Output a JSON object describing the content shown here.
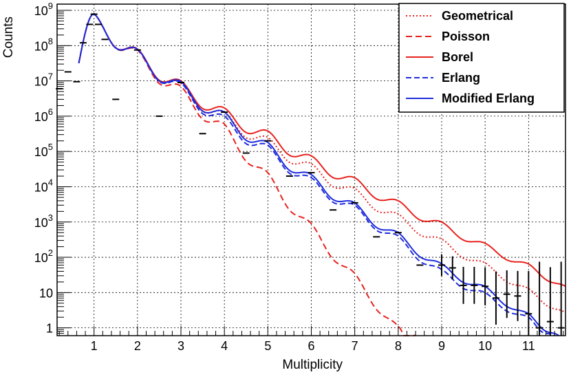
{
  "chart_data": {
    "type": "line",
    "xlabel": "Multiplicity",
    "ylabel": "Counts",
    "xlim": [
      0.15,
      11.85
    ],
    "ylim": [
      0.6,
      1500000000
    ],
    "yscale": "log",
    "grid": true,
    "legend_position": "top-right",
    "x_ticks": [
      "1",
      "2",
      "3",
      "4",
      "5",
      "6",
      "7",
      "8",
      "9",
      "10",
      "11"
    ],
    "y_ticks": [
      {
        "value": 1,
        "base": "1",
        "exp": ""
      },
      {
        "value": 10,
        "base": "10",
        "exp": ""
      },
      {
        "value": 100,
        "base": "10",
        "exp": "2"
      },
      {
        "value": 1000,
        "base": "10",
        "exp": "3"
      },
      {
        "value": 10000,
        "base": "10",
        "exp": "4"
      },
      {
        "value": 100000,
        "base": "10",
        "exp": "5"
      },
      {
        "value": 1000000,
        "base": "10",
        "exp": "6"
      },
      {
        "value": 10000000,
        "base": "10",
        "exp": "7"
      },
      {
        "value": 100000000,
        "base": "10",
        "exp": "8"
      },
      {
        "value": 1000000000,
        "base": "10",
        "exp": "9"
      }
    ],
    "series": [
      {
        "name": "Geometrical",
        "color": "#e8211d",
        "dash": "2,3",
        "x": [
          1,
          2,
          3,
          4,
          5,
          6,
          7,
          8,
          9,
          10,
          11,
          11.85
        ],
        "y": [
          800000000,
          80000000,
          9000000,
          1300000,
          250000,
          45000,
          9000,
          1700,
          330,
          70,
          13,
          2.7
        ]
      },
      {
        "name": "Poisson",
        "color": "#e8211d",
        "dash": "9,5",
        "x": [
          1,
          2,
          3,
          4,
          5,
          6,
          7,
          8,
          8.4
        ],
        "y": [
          800000000,
          75000000,
          7000000,
          600000,
          25000,
          900,
          35,
          1.1,
          0.6
        ]
      },
      {
        "name": "Borel",
        "color": "#e8211d",
        "dash": "",
        "x": [
          1,
          2,
          3,
          4,
          5,
          6,
          7,
          8,
          9,
          10,
          11,
          11.85
        ],
        "y": [
          800000000,
          80000000,
          10000000,
          1700000,
          380000,
          75000,
          18000,
          4000,
          1000,
          250,
          65,
          15
        ]
      },
      {
        "name": "Erlang",
        "color": "#1d2bdc",
        "dash": "8,4",
        "x": [
          1,
          2,
          3,
          4,
          5,
          6,
          7,
          8,
          9,
          10,
          11,
          11.6
        ],
        "y": [
          800000000,
          78000000,
          8800000,
          1000000,
          150000,
          18000,
          3000,
          400,
          45,
          10,
          2,
          0.6
        ]
      },
      {
        "name": "Modified Erlang",
        "color": "#1d2bdc",
        "dash": "",
        "x": [
          1,
          2,
          3,
          4,
          5,
          6,
          7,
          8,
          9,
          10,
          11,
          11.7
        ],
        "y": [
          800000000,
          78000000,
          9500000,
          1300000,
          180000,
          22000,
          3500,
          500,
          65,
          15,
          2.5,
          0.6
        ]
      }
    ],
    "points": {
      "name": "data",
      "color": "#000000",
      "x": [
        0.2,
        0.4,
        0.6,
        0.75,
        0.9,
        1,
        1.1,
        1.25,
        1.5,
        2,
        2.5,
        3,
        3.5,
        4,
        4.5,
        5,
        5.5,
        6,
        6.5,
        7,
        7.5,
        8,
        8.5,
        9,
        9.25,
        9.5,
        9.75,
        10,
        10.25,
        10.5,
        10.75,
        11,
        11.25,
        11.5,
        11.75
      ],
      "y": [
        6000000,
        18000000,
        9500000,
        120000000,
        400000000,
        780000000,
        400000000,
        150000000,
        3000000,
        75000000,
        1000000,
        9000000,
        320000,
        1300000,
        90000,
        200000,
        20000,
        25000,
        2200,
        3500,
        380,
        500,
        60,
        60,
        50,
        16,
        16,
        15,
        7,
        9,
        8,
        2.5,
        1,
        1.5,
        1
      ]
    }
  }
}
